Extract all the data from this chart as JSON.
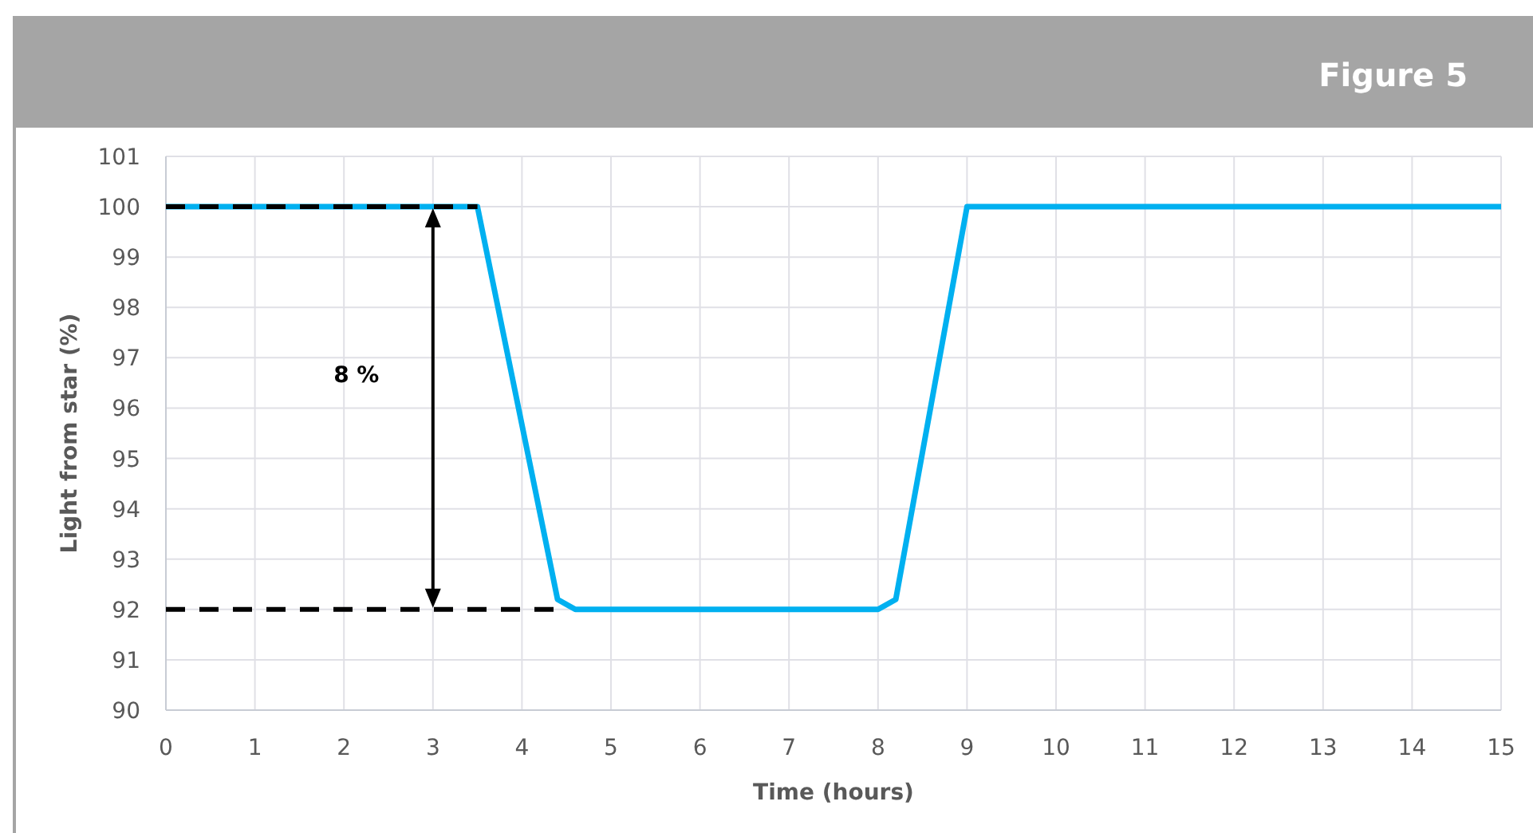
{
  "chart_data": {
    "type": "line",
    "title": "Figure 5",
    "xlabel": "Time (hours)",
    "ylabel": "Light from star (%)",
    "xlim": [
      0,
      15
    ],
    "xticks": [
      0,
      1,
      2,
      3,
      4,
      5,
      6,
      7,
      8,
      9,
      10,
      11,
      12,
      13,
      14,
      15
    ],
    "ylim": [
      90,
      101
    ],
    "yticks": [
      90,
      91,
      92,
      93,
      94,
      95,
      96,
      97,
      98,
      99,
      100,
      101
    ],
    "grid": true,
    "marker": "none",
    "series": [
      {
        "x": [
          0,
          3.5,
          4.4,
          4.6,
          8,
          8.2,
          9,
          15
        ],
        "values": [
          100,
          100,
          92.2,
          92,
          92,
          92.2,
          100,
          100
        ],
        "color": "#00b0f0",
        "line_style": "solid"
      },
      {
        "x": [
          0,
          3.5
        ],
        "values": [
          100,
          100
        ],
        "color": "#000000",
        "line_style": "dashed"
      },
      {
        "x": [
          0,
          4.4
        ],
        "values": [
          92,
          92
        ],
        "color": "#000000",
        "line_style": "dashed"
      }
    ],
    "annotations": [
      "8 %"
    ]
  }
}
